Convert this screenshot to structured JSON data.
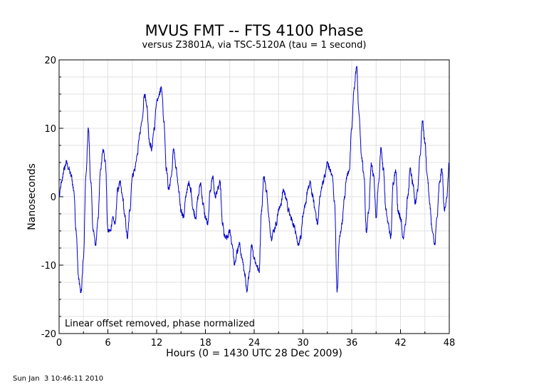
{
  "chart_data": {
    "type": "line",
    "title": "MVUS FMT -- FTS 4100 Phase",
    "subtitle": "versus Z3801A, via TSC-5120A (tau = 1 second)",
    "xlabel": "Hours (0 = 1430 UTC 28 Dec 2009)",
    "ylabel": "Nanoseconds",
    "xlim": [
      0,
      48
    ],
    "ylim": [
      -20,
      20
    ],
    "x_ticks": [
      "0",
      "6",
      "12",
      "18",
      "24",
      "30",
      "36",
      "42",
      "48"
    ],
    "y_ticks": [
      "20",
      "10",
      "0",
      "-10",
      "-20"
    ],
    "grid": true,
    "annotation": "Linear offset removed, phase normalized",
    "line_color": "#0000cc",
    "series": [
      {
        "x": [
          0,
          0.3,
          0.6,
          0.9,
          1.2,
          1.5,
          1.8,
          2.1,
          2.4,
          2.7,
          3.0,
          3.3,
          3.6,
          3.9,
          4.2,
          4.5,
          4.8,
          5.1,
          5.4,
          5.7,
          6.0,
          6.3,
          6.6,
          6.9,
          7.2,
          7.5,
          7.8,
          8.1,
          8.4,
          8.7,
          9.0,
          9.3,
          9.6,
          9.9,
          10.2,
          10.5,
          10.8,
          11.1,
          11.4,
          11.7,
          12.0,
          12.3,
          12.6,
          12.9,
          13.2,
          13.5,
          13.8,
          14.1,
          14.4,
          14.7,
          15.0,
          15.3,
          15.6,
          15.9,
          16.2,
          16.5,
          16.8,
          17.1,
          17.4,
          17.7,
          18.0,
          18.3,
          18.6,
          18.9,
          19.2,
          19.5,
          19.8,
          20.1,
          20.4,
          20.7,
          21.0,
          21.3,
          21.6,
          21.9,
          22.2,
          22.5,
          22.8,
          23.1,
          23.4,
          23.7,
          24.0,
          24.3,
          24.6,
          24.9,
          25.2,
          25.5,
          25.8,
          26.1,
          26.4,
          26.7,
          27.0,
          27.3,
          27.6,
          27.9,
          28.2,
          28.5,
          28.8,
          29.1,
          29.4,
          29.7,
          30.0,
          30.3,
          30.6,
          30.9,
          31.2,
          31.5,
          31.8,
          32.1,
          32.4,
          32.7,
          33.0,
          33.3,
          33.6,
          33.9,
          34.2,
          34.5,
          34.8,
          35.1,
          35.4,
          35.7,
          36.0,
          36.3,
          36.6,
          36.9,
          37.2,
          37.5,
          37.8,
          38.1,
          38.4,
          38.7,
          39.0,
          39.3,
          39.6,
          39.9,
          40.2,
          40.5,
          40.8,
          41.1,
          41.4,
          41.7,
          42.0,
          42.3,
          42.6,
          42.9,
          43.2,
          43.5,
          43.8,
          44.1,
          44.4,
          44.7,
          45.0,
          45.3,
          45.6,
          45.9,
          46.2,
          46.5,
          46.8,
          47.1,
          47.4,
          47.7,
          48.0
        ],
        "values": [
          0,
          2,
          4,
          5,
          4,
          3,
          1,
          -5,
          -12,
          -14,
          -9,
          3,
          10,
          2,
          -5,
          -7,
          -3,
          4,
          7,
          5,
          -5,
          -5,
          -3,
          -4,
          1,
          2,
          0,
          -3,
          -6,
          -2,
          3,
          4,
          6,
          9,
          11,
          15,
          13,
          8,
          7,
          10,
          14,
          15,
          16,
          11,
          4,
          1,
          3,
          7,
          4,
          1,
          -2,
          -3,
          0,
          2,
          1,
          -2,
          -3,
          0,
          2,
          -1,
          -3,
          -4,
          1,
          3,
          0,
          1,
          2,
          -4,
          -6,
          -6,
          -5,
          -7,
          -10,
          -8,
          -7,
          -9,
          -11,
          -14,
          -11,
          -7,
          -9,
          -10,
          -11,
          -2,
          3,
          1,
          -3,
          -6,
          -5,
          -4,
          -2,
          -1,
          1,
          0,
          -2,
          -3,
          -4,
          -5,
          -7,
          -6,
          -3,
          -1,
          1,
          2,
          0,
          -2,
          -4,
          0,
          2,
          3,
          5,
          4,
          3,
          -1,
          -14,
          -6,
          -4,
          0,
          3,
          4,
          10,
          16,
          19,
          12,
          6,
          3,
          -5,
          -2,
          5,
          3,
          -3,
          2,
          7,
          4,
          -2,
          -4,
          -6,
          2,
          4,
          -2,
          -3,
          -6,
          -4,
          0,
          4,
          2,
          -1,
          1,
          6,
          11,
          8,
          3,
          -1,
          -5,
          -7,
          -3,
          2,
          4,
          -2,
          0,
          5
        ]
      }
    ]
  },
  "timestamp": "Sun Jan  3 10:46:11 2010"
}
